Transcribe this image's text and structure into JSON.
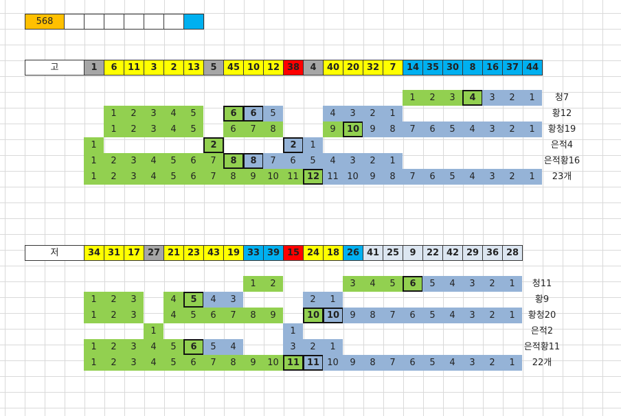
{
  "palette": {
    "g": "#92d050",
    "b": "#95b3d7",
    "y": "#ffff00",
    "k": "#a6a6a6",
    "r": "#ff0000",
    "c": "#00b0f0",
    "l": "#dce6f1",
    "o": "#ffc000",
    "w": "#ffffff"
  },
  "top_row": [
    {
      "v": 568,
      "c": "o"
    },
    {
      "c": "w"
    },
    {
      "c": "w"
    },
    {
      "c": "w"
    },
    {
      "c": "w"
    },
    {
      "c": "w"
    },
    {
      "c": "w"
    },
    {
      "c": "c"
    }
  ],
  "sections": [
    {
      "label": "고",
      "numbers": [
        {
          "v": 1,
          "c": "k"
        },
        {
          "v": 6,
          "c": "y"
        },
        {
          "v": 11,
          "c": "y"
        },
        {
          "v": 3,
          "c": "y"
        },
        {
          "v": 2,
          "c": "y"
        },
        {
          "v": 13,
          "c": "y"
        },
        {
          "v": 5,
          "c": "k"
        },
        {
          "v": 45,
          "c": "y"
        },
        {
          "v": 10,
          "c": "y"
        },
        {
          "v": 12,
          "c": "y"
        },
        {
          "v": 38,
          "c": "r"
        },
        {
          "v": 4,
          "c": "k"
        },
        {
          "v": 40,
          "c": "y"
        },
        {
          "v": 20,
          "c": "y"
        },
        {
          "v": 32,
          "c": "y"
        },
        {
          "v": 7,
          "c": "y"
        },
        {
          "v": 14,
          "c": "c"
        },
        {
          "v": 35,
          "c": "c"
        },
        {
          "v": 30,
          "c": "c"
        },
        {
          "v": 8,
          "c": "c"
        },
        {
          "v": 16,
          "c": "c"
        },
        {
          "v": 37,
          "c": "c"
        },
        {
          "v": 44,
          "c": "c"
        }
      ],
      "rows": [
        {
          "label": "청7",
          "cells": [
            null,
            null,
            null,
            null,
            null,
            null,
            null,
            null,
            null,
            null,
            null,
            null,
            null,
            null,
            null,
            null,
            {
              "v": 1,
              "c": "g"
            },
            {
              "v": 2,
              "c": "g"
            },
            {
              "v": 3,
              "c": "g"
            },
            {
              "v": 4,
              "c": "g",
              "x": true
            },
            {
              "v": 3,
              "c": "b"
            },
            {
              "v": 2,
              "c": "b"
            },
            {
              "v": 1,
              "c": "b"
            }
          ]
        },
        {
          "label": "황12",
          "cells": [
            null,
            {
              "v": 1,
              "c": "g"
            },
            {
              "v": 2,
              "c": "g"
            },
            {
              "v": 3,
              "c": "g"
            },
            {
              "v": 4,
              "c": "g"
            },
            {
              "v": 5,
              "c": "g"
            },
            null,
            {
              "v": 6,
              "c": "g",
              "x": true
            },
            {
              "v": 6,
              "c": "b",
              "x": true
            },
            {
              "v": 5,
              "c": "b"
            },
            null,
            null,
            {
              "v": 4,
              "c": "b"
            },
            {
              "v": 3,
              "c": "b"
            },
            {
              "v": 2,
              "c": "b"
            },
            {
              "v": 1,
              "c": "b"
            }
          ]
        },
        {
          "label": "황청19",
          "cells": [
            null,
            {
              "v": 1,
              "c": "g"
            },
            {
              "v": 2,
              "c": "g"
            },
            {
              "v": 3,
              "c": "g"
            },
            {
              "v": 4,
              "c": "g"
            },
            {
              "v": 5,
              "c": "g"
            },
            null,
            {
              "v": 6,
              "c": "g"
            },
            {
              "v": 7,
              "c": "g"
            },
            {
              "v": 8,
              "c": "g"
            },
            null,
            null,
            {
              "v": 9,
              "c": "g"
            },
            {
              "v": 10,
              "c": "g",
              "x": true
            },
            {
              "v": 9,
              "c": "b"
            },
            {
              "v": 8,
              "c": "b"
            },
            {
              "v": 7,
              "c": "b"
            },
            {
              "v": 6,
              "c": "b"
            },
            {
              "v": 5,
              "c": "b"
            },
            {
              "v": 4,
              "c": "b"
            },
            {
              "v": 3,
              "c": "b"
            },
            {
              "v": 2,
              "c": "b"
            },
            {
              "v": 1,
              "c": "b"
            }
          ]
        },
        {
          "label": "은적4",
          "cells": [
            {
              "v": 1,
              "c": "g"
            },
            null,
            null,
            null,
            null,
            null,
            {
              "v": 2,
              "c": "g",
              "x": true
            },
            null,
            null,
            null,
            {
              "v": 2,
              "c": "b",
              "x": true
            },
            {
              "v": 1,
              "c": "b"
            }
          ]
        },
        {
          "label": "은적황16",
          "cells": [
            {
              "v": 1,
              "c": "g"
            },
            {
              "v": 2,
              "c": "g"
            },
            {
              "v": 3,
              "c": "g"
            },
            {
              "v": 4,
              "c": "g"
            },
            {
              "v": 5,
              "c": "g"
            },
            {
              "v": 6,
              "c": "g"
            },
            {
              "v": 7,
              "c": "g"
            },
            {
              "v": 8,
              "c": "g",
              "x": true
            },
            {
              "v": 8,
              "c": "b",
              "x": true
            },
            {
              "v": 7,
              "c": "b"
            },
            {
              "v": 6,
              "c": "b"
            },
            {
              "v": 5,
              "c": "b"
            },
            {
              "v": 4,
              "c": "b"
            },
            {
              "v": 3,
              "c": "b"
            },
            {
              "v": 2,
              "c": "b"
            },
            {
              "v": 1,
              "c": "b"
            }
          ]
        },
        {
          "label": "23개",
          "cells": [
            {
              "v": 1,
              "c": "g"
            },
            {
              "v": 2,
              "c": "g"
            },
            {
              "v": 3,
              "c": "g"
            },
            {
              "v": 4,
              "c": "g"
            },
            {
              "v": 5,
              "c": "g"
            },
            {
              "v": 6,
              "c": "g"
            },
            {
              "v": 7,
              "c": "g"
            },
            {
              "v": 8,
              "c": "g"
            },
            {
              "v": 9,
              "c": "g"
            },
            {
              "v": 10,
              "c": "g"
            },
            {
              "v": 11,
              "c": "g"
            },
            {
              "v": 12,
              "c": "g",
              "x": true
            },
            {
              "v": 11,
              "c": "b"
            },
            {
              "v": 10,
              "c": "b"
            },
            {
              "v": 9,
              "c": "b"
            },
            {
              "v": 8,
              "c": "b"
            },
            {
              "v": 7,
              "c": "b"
            },
            {
              "v": 6,
              "c": "b"
            },
            {
              "v": 5,
              "c": "b"
            },
            {
              "v": 4,
              "c": "b"
            },
            {
              "v": 3,
              "c": "b"
            },
            {
              "v": 2,
              "c": "b"
            },
            {
              "v": 1,
              "c": "b"
            }
          ]
        }
      ]
    },
    {
      "label": "저",
      "numbers": [
        {
          "v": 34,
          "c": "y"
        },
        {
          "v": 31,
          "c": "y"
        },
        {
          "v": 17,
          "c": "y"
        },
        {
          "v": 27,
          "c": "k"
        },
        {
          "v": 21,
          "c": "y"
        },
        {
          "v": 23,
          "c": "y"
        },
        {
          "v": 43,
          "c": "y"
        },
        {
          "v": 19,
          "c": "y"
        },
        {
          "v": 33,
          "c": "c"
        },
        {
          "v": 39,
          "c": "c"
        },
        {
          "v": 15,
          "c": "r"
        },
        {
          "v": 24,
          "c": "y"
        },
        {
          "v": 18,
          "c": "y"
        },
        {
          "v": 26,
          "c": "c"
        },
        {
          "v": 41,
          "c": "l"
        },
        {
          "v": 25,
          "c": "l"
        },
        {
          "v": 9,
          "c": "l"
        },
        {
          "v": 22,
          "c": "l"
        },
        {
          "v": 42,
          "c": "l"
        },
        {
          "v": 29,
          "c": "l"
        },
        {
          "v": 36,
          "c": "l"
        },
        {
          "v": 28,
          "c": "l"
        }
      ],
      "rows": [
        {
          "label": "청11",
          "cells": [
            null,
            null,
            null,
            null,
            null,
            null,
            null,
            null,
            {
              "v": 1,
              "c": "g"
            },
            {
              "v": 2,
              "c": "g"
            },
            null,
            null,
            null,
            {
              "v": 3,
              "c": "g"
            },
            {
              "v": 4,
              "c": "g"
            },
            {
              "v": 5,
              "c": "g"
            },
            {
              "v": 6,
              "c": "g",
              "x": true
            },
            {
              "v": 5,
              "c": "b"
            },
            {
              "v": 4,
              "c": "b"
            },
            {
              "v": 3,
              "c": "b"
            },
            {
              "v": 2,
              "c": "b"
            },
            {
              "v": 1,
              "c": "b"
            }
          ]
        },
        {
          "label": "황9",
          "cells": [
            {
              "v": 1,
              "c": "g"
            },
            {
              "v": 2,
              "c": "g"
            },
            {
              "v": 3,
              "c": "g"
            },
            null,
            {
              "v": 4,
              "c": "g"
            },
            {
              "v": 5,
              "c": "g",
              "x": true
            },
            {
              "v": 4,
              "c": "b"
            },
            {
              "v": 3,
              "c": "b"
            },
            null,
            null,
            null,
            {
              "v": 2,
              "c": "b"
            },
            {
              "v": 1,
              "c": "b"
            }
          ]
        },
        {
          "label": "황청20",
          "cells": [
            {
              "v": 1,
              "c": "g"
            },
            {
              "v": 2,
              "c": "g"
            },
            {
              "v": 3,
              "c": "g"
            },
            null,
            {
              "v": 4,
              "c": "g"
            },
            {
              "v": 5,
              "c": "g"
            },
            {
              "v": 6,
              "c": "g"
            },
            {
              "v": 7,
              "c": "g"
            },
            {
              "v": 8,
              "c": "g"
            },
            {
              "v": 9,
              "c": "g"
            },
            null,
            {
              "v": 10,
              "c": "g",
              "x": true
            },
            {
              "v": 10,
              "c": "b",
              "x": true
            },
            {
              "v": 9,
              "c": "b"
            },
            {
              "v": 8,
              "c": "b"
            },
            {
              "v": 7,
              "c": "b"
            },
            {
              "v": 6,
              "c": "b"
            },
            {
              "v": 5,
              "c": "b"
            },
            {
              "v": 4,
              "c": "b"
            },
            {
              "v": 3,
              "c": "b"
            },
            {
              "v": 2,
              "c": "b"
            },
            {
              "v": 1,
              "c": "b"
            }
          ]
        },
        {
          "label": "은적2",
          "cells": [
            null,
            null,
            null,
            {
              "v": 1,
              "c": "g"
            },
            null,
            null,
            null,
            null,
            null,
            null,
            {
              "v": 1,
              "c": "b"
            }
          ]
        },
        {
          "label": "은적황11",
          "cells": [
            {
              "v": 1,
              "c": "g"
            },
            {
              "v": 2,
              "c": "g"
            },
            {
              "v": 3,
              "c": "g"
            },
            {
              "v": 4,
              "c": "g"
            },
            {
              "v": 5,
              "c": "g"
            },
            {
              "v": 6,
              "c": "g",
              "x": true
            },
            {
              "v": 5,
              "c": "b"
            },
            {
              "v": 4,
              "c": "b"
            },
            null,
            null,
            {
              "v": 3,
              "c": "b"
            },
            {
              "v": 2,
              "c": "b"
            },
            {
              "v": 1,
              "c": "b"
            }
          ]
        },
        {
          "label": "22개",
          "cells": [
            {
              "v": 1,
              "c": "g"
            },
            {
              "v": 2,
              "c": "g"
            },
            {
              "v": 3,
              "c": "g"
            },
            {
              "v": 4,
              "c": "g"
            },
            {
              "v": 5,
              "c": "g"
            },
            {
              "v": 6,
              "c": "g"
            },
            {
              "v": 7,
              "c": "g"
            },
            {
              "v": 8,
              "c": "g"
            },
            {
              "v": 9,
              "c": "g"
            },
            {
              "v": 10,
              "c": "g"
            },
            {
              "v": 11,
              "c": "g",
              "x": true
            },
            {
              "v": 11,
              "c": "b",
              "x": true
            },
            {
              "v": 10,
              "c": "b"
            },
            {
              "v": 9,
              "c": "b"
            },
            {
              "v": 8,
              "c": "b"
            },
            {
              "v": 7,
              "c": "b"
            },
            {
              "v": 6,
              "c": "b"
            },
            {
              "v": 5,
              "c": "b"
            },
            {
              "v": 4,
              "c": "b"
            },
            {
              "v": 3,
              "c": "b"
            },
            {
              "v": 2,
              "c": "b"
            },
            {
              "v": 1,
              "c": "b"
            }
          ]
        }
      ]
    }
  ]
}
